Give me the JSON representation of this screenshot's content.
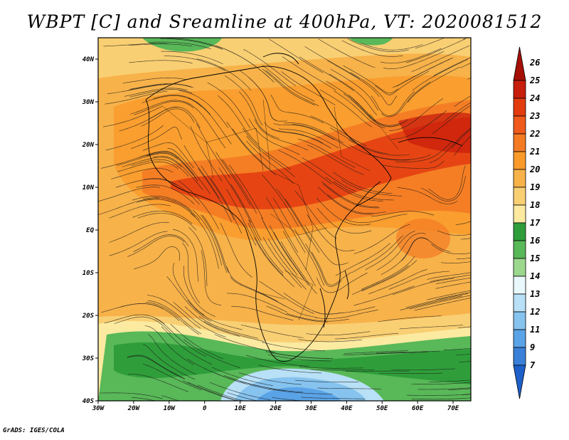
{
  "title": "WBPT [C] and Sreamline at 400hPa, VT: 2020081512",
  "credit": "GrADS: IGES/COLA",
  "map": {
    "lon_range": [
      -30,
      75
    ],
    "lat_range": [
      -40,
      45
    ],
    "lon_ticks": [
      {
        "value": -30,
        "label": "30W"
      },
      {
        "value": -20,
        "label": "20W"
      },
      {
        "value": -10,
        "label": "10W"
      },
      {
        "value": 0,
        "label": "0"
      },
      {
        "value": 10,
        "label": "10E"
      },
      {
        "value": 20,
        "label": "20E"
      },
      {
        "value": 30,
        "label": "30E"
      },
      {
        "value": 40,
        "label": "40E"
      },
      {
        "value": 50,
        "label": "50E"
      },
      {
        "value": 60,
        "label": "60E"
      },
      {
        "value": 70,
        "label": "70E"
      }
    ],
    "lat_ticks": [
      {
        "value": 40,
        "label": "40N"
      },
      {
        "value": 30,
        "label": "30N"
      },
      {
        "value": 20,
        "label": "20N"
      },
      {
        "value": 10,
        "label": "10N"
      },
      {
        "value": 0,
        "label": "EQ"
      },
      {
        "value": -10,
        "label": "10S"
      },
      {
        "value": -20,
        "label": "20S"
      },
      {
        "value": -30,
        "label": "30S"
      },
      {
        "value": -40,
        "label": "40S"
      }
    ]
  },
  "colorbar": {
    "labels": [
      "26",
      "25",
      "24",
      "23",
      "22",
      "21",
      "20",
      "19",
      "18",
      "17",
      "16",
      "15",
      "14",
      "13",
      "12",
      "11",
      "9",
      "7"
    ],
    "colors": [
      "#a50f05",
      "#c81e0c",
      "#e33b10",
      "#f05a1c",
      "#f47a24",
      "#f99a2a",
      "#f7b24a",
      "#f9cf73",
      "#fbeaa0",
      "#2f9e3a",
      "#59b858",
      "#9bd88e",
      "#e9f8fb",
      "#b8e0f6",
      "#86c3ef",
      "#5aa3e6",
      "#3a80d8",
      "#1e60c9"
    ]
  }
}
